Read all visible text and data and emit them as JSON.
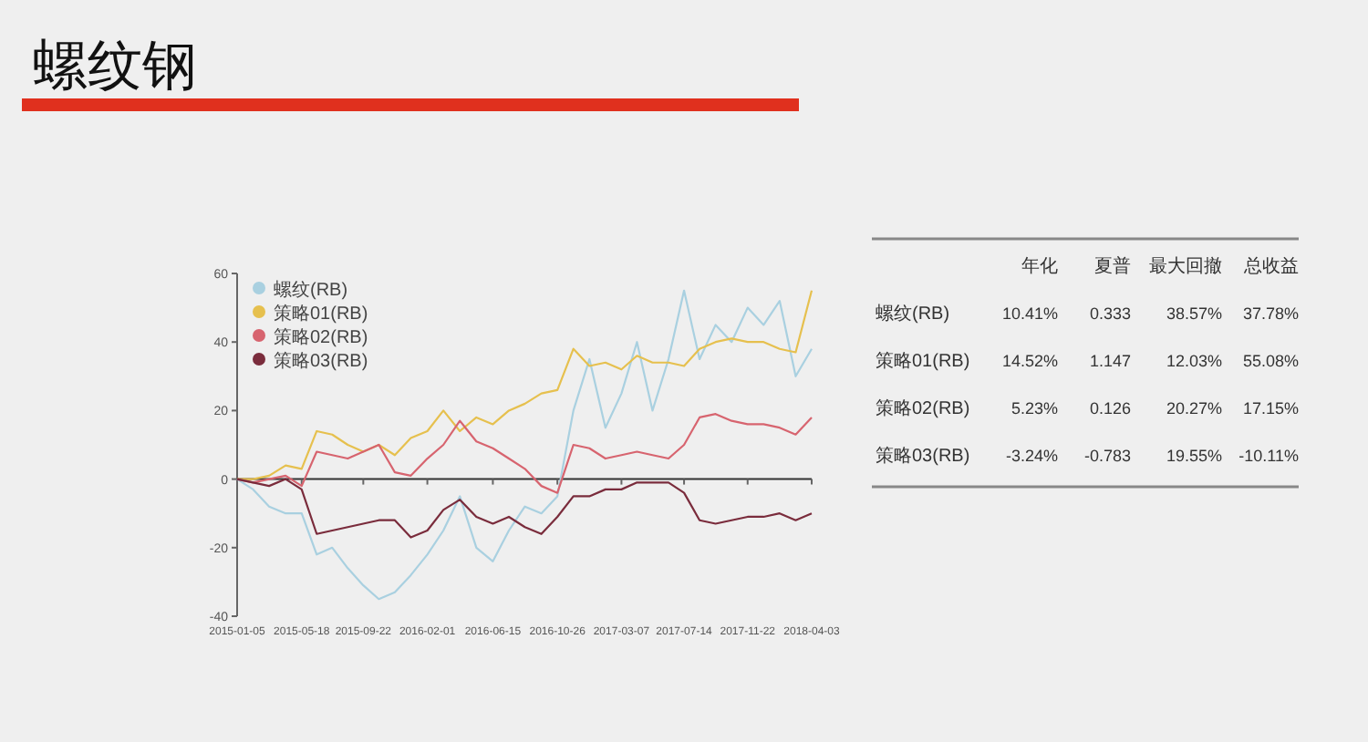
{
  "chart_data": [
    {
      "type": "line",
      "title": "螺纹钢",
      "legend": "top left",
      "marker": "none",
      "line_style": "solid",
      "grid": false,
      "x": [
        "2015-01-05",
        "2015-02-07",
        "2015-03-12",
        "2015-04-15",
        "2015-05-18",
        "2015-06-18",
        "2015-07-20",
        "2015-08-21",
        "2015-09-22",
        "2015-10-24",
        "2015-11-26",
        "2015-12-29",
        "2016-02-01",
        "2016-03-05",
        "2016-04-08",
        "2016-05-12",
        "2016-06-15",
        "2016-07-18",
        "2016-08-20",
        "2016-09-23",
        "2016-10-26",
        "2016-11-28",
        "2016-12-31",
        "2017-02-02",
        "2017-03-07",
        "2017-04-08",
        "2017-05-10",
        "2017-06-12",
        "2017-07-14",
        "2017-08-15",
        "2017-09-17",
        "2017-10-20",
        "2017-11-22",
        "2017-12-25",
        "2018-01-27",
        "2018-03-01",
        "2018-04-03"
      ],
      "xlim": [
        "2015-01-05",
        "2018-04-03"
      ],
      "xticks": [
        "2015-01-05",
        "2015-05-18",
        "2015-09-22",
        "2016-02-01",
        "2016-06-15",
        "2016-10-26",
        "2017-03-07",
        "2017-07-14",
        "2017-11-22",
        "2018-04-03"
      ],
      "ref_lines": [
        {
          "axis": "y",
          "value": 0,
          "color": "#333333"
        }
      ],
      "ylim": [
        -40,
        60
      ],
      "yticks": [
        -40,
        -20,
        0,
        20,
        40,
        60
      ],
      "series": [
        {
          "name": "螺纹(RB)",
          "color": "#a9d0e0",
          "values": [
            0,
            -3,
            -8,
            -10,
            -10,
            -22,
            -20,
            -26,
            -31,
            -35,
            -33,
            -28,
            -22,
            -15,
            -5,
            -20,
            -24,
            -15,
            -8,
            -10,
            -5,
            20,
            35,
            15,
            25,
            40,
            20,
            35,
            55,
            35,
            45,
            40,
            50,
            45,
            52,
            30,
            38
          ]
        },
        {
          "name": "策略01(RB)",
          "color": "#e6c04e",
          "values": [
            0,
            0,
            1,
            4,
            3,
            14,
            13,
            10,
            8,
            10,
            7,
            12,
            14,
            20,
            14,
            18,
            16,
            20,
            22,
            25,
            26,
            38,
            33,
            34,
            32,
            36,
            34,
            34,
            33,
            38,
            40,
            41,
            40,
            40,
            38,
            37,
            55
          ]
        },
        {
          "name": "策略02(RB)",
          "color": "#d7646f",
          "values": [
            0,
            -1,
            0,
            1,
            -2,
            8,
            7,
            6,
            8,
            10,
            2,
            1,
            6,
            10,
            17,
            11,
            9,
            6,
            3,
            -2,
            -4,
            10,
            9,
            6,
            7,
            8,
            7,
            6,
            10,
            18,
            19,
            17,
            16,
            16,
            15,
            13,
            18
          ]
        },
        {
          "name": "策略03(RB)",
          "color": "#7a2c3c",
          "values": [
            0,
            -1,
            -2,
            0,
            -3,
            -16,
            -15,
            -14,
            -13,
            -12,
            -12,
            -17,
            -15,
            -9,
            -6,
            -11,
            -13,
            -11,
            -14,
            -16,
            -11,
            -5,
            -5,
            -3,
            -3,
            -1,
            -1,
            -1,
            -4,
            -12,
            -13,
            -12,
            -11,
            -11,
            -10,
            -12,
            -10
          ]
        }
      ]
    },
    {
      "type": "other",
      "categories": [
        "年化",
        "夏普",
        "最大回撤",
        "总收益"
      ],
      "y_categories": [
        "螺纹(RB)",
        "策略01(RB)",
        "策略02(RB)",
        "策略03(RB)"
      ],
      "cell_labels": [
        [
          "10.41%",
          "0.333",
          "38.57%",
          "37.78%"
        ],
        [
          "14.52%",
          "1.147",
          "12.03%",
          "55.08%"
        ],
        [
          "5.23%",
          "0.126",
          "20.27%",
          "17.15%"
        ],
        [
          "-3.24%",
          "-0.783",
          "19.55%",
          "-10.11%"
        ]
      ]
    }
  ]
}
